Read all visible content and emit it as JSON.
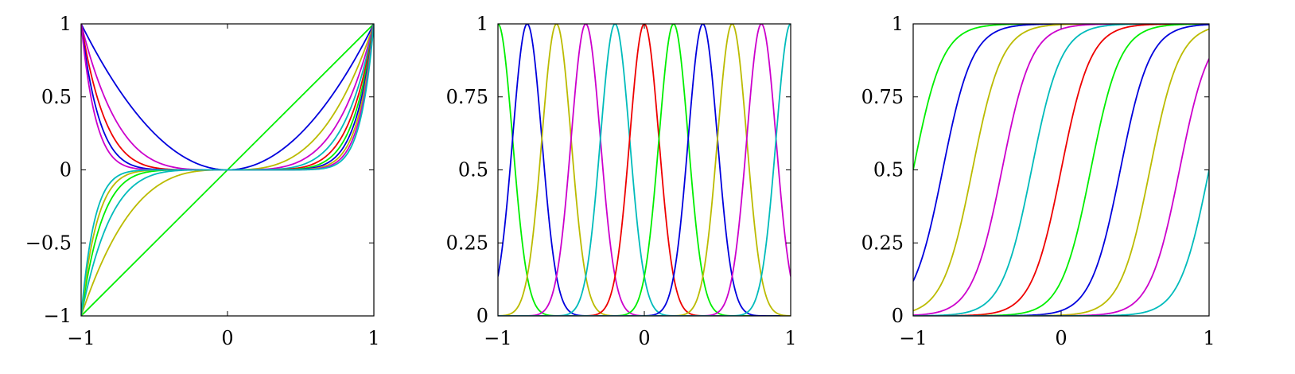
{
  "colors": {
    "blue": "#0000dd",
    "green": "#00ee00",
    "red": "#ee0000",
    "cyan": "#00bbbb",
    "magenta": "#cc00cc",
    "olive": "#bbbb00"
  },
  "chart_data": [
    {
      "type": "line",
      "title": "",
      "xlabel": "",
      "ylabel": "",
      "xlim": [
        -1,
        1
      ],
      "ylim": [
        -1,
        1
      ],
      "xticks": [
        -1,
        0,
        1
      ],
      "xtick_labels": [
        "−1",
        "0",
        "1"
      ],
      "yticks": [
        -1,
        -0.5,
        0,
        0.5,
        1
      ],
      "ytick_labels": [
        "−1",
        "−0.5",
        "0",
        "0.5",
        "1"
      ],
      "grid": false,
      "legend": "none",
      "basis": "polynomial x^n",
      "x": [
        -1,
        -0.75,
        -0.5,
        -0.25,
        0,
        0.25,
        0.5,
        0.75,
        1
      ],
      "series": [
        {
          "color": "green",
          "values": [
            -1,
            -0.75,
            -0.5,
            -0.25,
            0,
            0.25,
            0.5,
            0.75,
            1
          ]
        },
        {
          "color": "blue",
          "values": [
            1,
            0.563,
            0.25,
            0.063,
            0,
            0.063,
            0.25,
            0.563,
            1
          ]
        },
        {
          "color": "olive",
          "values": [
            -1,
            -0.422,
            -0.125,
            -0.016,
            0,
            0.016,
            0.125,
            0.422,
            1
          ]
        },
        {
          "color": "magenta",
          "values": [
            1,
            0.316,
            0.063,
            0.004,
            0,
            0.004,
            0.063,
            0.316,
            1
          ]
        },
        {
          "color": "cyan",
          "values": [
            -1,
            -0.237,
            -0.031,
            -0.001,
            0,
            0.001,
            0.031,
            0.237,
            1
          ]
        },
        {
          "color": "red",
          "values": [
            1,
            0.178,
            0.016,
            0,
            0,
            0,
            0.016,
            0.178,
            1
          ]
        },
        {
          "color": "green",
          "values": [
            -1,
            -0.133,
            -0.008,
            0,
            0,
            0,
            0.008,
            0.133,
            1
          ]
        },
        {
          "color": "blue",
          "values": [
            1,
            0.1,
            0.004,
            0,
            0,
            0,
            0.004,
            0.1,
            1
          ]
        },
        {
          "color": "olive",
          "values": [
            -1,
            -0.075,
            -0.002,
            0,
            0,
            0,
            0.002,
            0.075,
            1
          ]
        },
        {
          "color": "magenta",
          "values": [
            1,
            0.056,
            0.001,
            0,
            0,
            0,
            0.001,
            0.056,
            1
          ]
        },
        {
          "color": "cyan",
          "values": [
            -1,
            -0.042,
            0,
            0,
            0,
            0,
            0,
            0.042,
            1
          ]
        }
      ]
    },
    {
      "type": "line",
      "title": "",
      "xlabel": "",
      "ylabel": "",
      "xlim": [
        -1,
        1
      ],
      "ylim": [
        0,
        1
      ],
      "xticks": [
        -1,
        0,
        1
      ],
      "xtick_labels": [
        "−1",
        "0",
        "1"
      ],
      "yticks": [
        0,
        0.25,
        0.5,
        0.75,
        1
      ],
      "ytick_labels": [
        "0",
        "0.25",
        "0.5",
        "0.75",
        "1"
      ],
      "grid": false,
      "legend": "none",
      "basis": "gaussian",
      "width_s": 0.1,
      "centers": [
        -1,
        -0.8,
        -0.6,
        -0.4,
        -0.2,
        0,
        0.2,
        0.4,
        0.6,
        0.8,
        1
      ],
      "series": [
        {
          "color": "green",
          "center": -1
        },
        {
          "color": "blue",
          "center": -0.8
        },
        {
          "color": "olive",
          "center": -0.6
        },
        {
          "color": "magenta",
          "center": -0.4
        },
        {
          "color": "cyan",
          "center": -0.2
        },
        {
          "color": "red",
          "center": 0
        },
        {
          "color": "green",
          "center": 0.2
        },
        {
          "color": "blue",
          "center": 0.4
        },
        {
          "color": "olive",
          "center": 0.6
        },
        {
          "color": "magenta",
          "center": 0.8
        },
        {
          "color": "cyan",
          "center": 1
        }
      ]
    },
    {
      "type": "line",
      "title": "",
      "xlabel": "",
      "ylabel": "",
      "xlim": [
        -1,
        1
      ],
      "ylim": [
        0,
        1
      ],
      "xticks": [
        -1,
        0,
        1
      ],
      "xtick_labels": [
        "−1",
        "0",
        "1"
      ],
      "yticks": [
        0,
        0.25,
        0.5,
        0.75,
        1
      ],
      "ytick_labels": [
        "0",
        "0.25",
        "0.5",
        "0.75",
        "1"
      ],
      "grid": false,
      "legend": "none",
      "basis": "logistic sigmoid",
      "scale_s": 0.1,
      "centers": [
        -1,
        -0.8,
        -0.6,
        -0.4,
        -0.2,
        0,
        0.2,
        0.4,
        0.6,
        0.8,
        1
      ],
      "series": [
        {
          "color": "green",
          "center": -1
        },
        {
          "color": "blue",
          "center": -0.8
        },
        {
          "color": "olive",
          "center": -0.6
        },
        {
          "color": "magenta",
          "center": -0.4
        },
        {
          "color": "cyan",
          "center": -0.2
        },
        {
          "color": "red",
          "center": 0
        },
        {
          "color": "green",
          "center": 0.2
        },
        {
          "color": "blue",
          "center": 0.4
        },
        {
          "color": "olive",
          "center": 0.6
        },
        {
          "color": "magenta",
          "center": 0.8
        },
        {
          "color": "cyan",
          "center": 1
        }
      ]
    }
  ]
}
